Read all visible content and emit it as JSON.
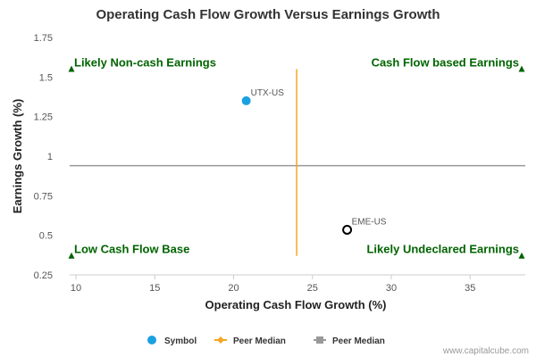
{
  "chart_data": {
    "type": "scatter",
    "title": "Operating Cash Flow Growth Versus Earnings Growth",
    "xlabel": "Operating Cash Flow Growth (%)",
    "ylabel": "Earnings Growth (%)",
    "xlim": [
      9.6,
      38.5
    ],
    "ylim": [
      0.25,
      1.75
    ],
    "x_ticks": [
      10,
      15,
      20,
      25,
      30,
      35
    ],
    "y_ticks": [
      0.25,
      0.5,
      0.75,
      1,
      1.25,
      1.5,
      1.75
    ],
    "y_tick_labels": [
      "0.25",
      "0.5",
      "0.75",
      "1",
      "1.25",
      "1.5",
      "1.75"
    ],
    "points": [
      {
        "label": "UTX-US",
        "x": 20.8,
        "y": 1.35,
        "style": "filled",
        "color": "#1ba1e2"
      },
      {
        "label": "EME-US",
        "x": 27.2,
        "y": 0.535,
        "style": "hollow",
        "color": "#000000"
      }
    ],
    "peer_median_x": 24.0,
    "peer_median_x_span": [
      0.37,
      1.55
    ],
    "peer_median_y": 0.94,
    "quadrant_labels": [
      {
        "text": "Likely Non-cash Earnings",
        "corner": "top-left",
        "marker_y": 1.55
      },
      {
        "text": "Cash Flow based Earnings",
        "corner": "top-right",
        "marker_y": 1.55
      },
      {
        "text": "Low Cash Flow Base",
        "corner": "bottom-left",
        "marker_y": 0.37
      },
      {
        "text": "Likely Undeclared Earnings",
        "corner": "bottom-right",
        "marker_y": 0.37
      }
    ],
    "legend": [
      {
        "name": "Symbol",
        "icon": "circle",
        "color": "#1ba1e2"
      },
      {
        "name": "Peer Median",
        "icon": "diamond-line",
        "color": "#f5a623"
      },
      {
        "name": "Peer Median",
        "icon": "square-line",
        "color": "#999999"
      }
    ],
    "legend_position": "bottom",
    "grid": false,
    "colors": {
      "quadrant_text": "#006400",
      "vertical_median": "#f5a623",
      "horizontal_median": "#999999"
    }
  },
  "credit": "www.capitalcube.com"
}
